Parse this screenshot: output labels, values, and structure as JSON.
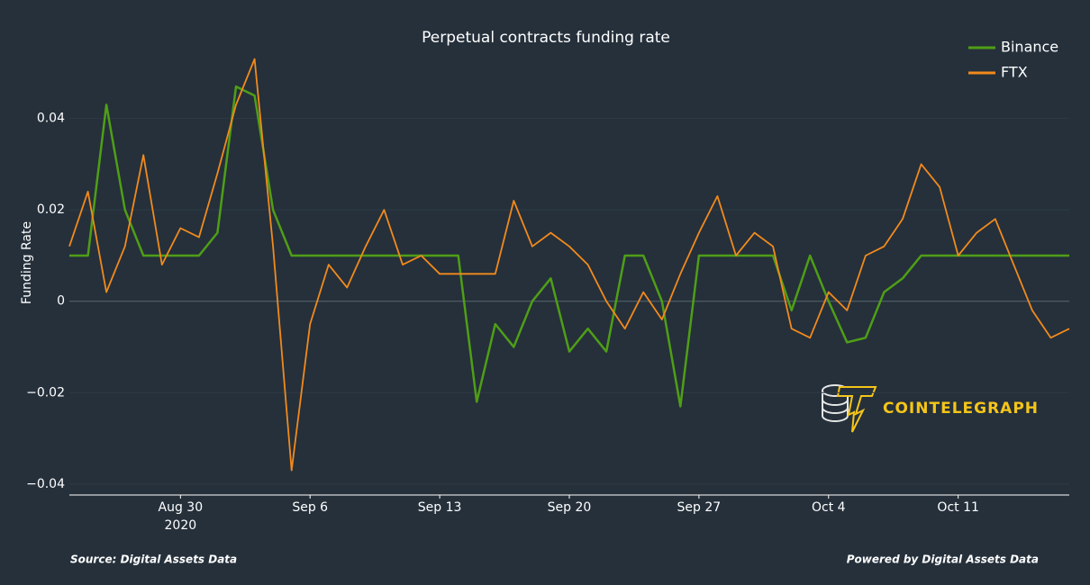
{
  "chart_data": {
    "type": "line",
    "title": "Perpetual contracts funding rate",
    "y_label": "Funding Rate",
    "source": "Source: Digital Assets Data",
    "credit": "Powered by Digital Assets Data",
    "watermark": "COINTELEGRAPH",
    "legend": "top-right",
    "x": [
      "2020-08-24",
      "2020-08-25",
      "2020-08-26",
      "2020-08-27",
      "2020-08-28",
      "2020-08-29",
      "2020-08-30",
      "2020-08-31",
      "2020-09-01",
      "2020-09-02",
      "2020-09-03",
      "2020-09-04",
      "2020-09-05",
      "2020-09-06",
      "2020-09-07",
      "2020-09-08",
      "2020-09-09",
      "2020-09-10",
      "2020-09-11",
      "2020-09-12",
      "2020-09-13",
      "2020-09-14",
      "2020-09-15",
      "2020-09-16",
      "2020-09-17",
      "2020-09-18",
      "2020-09-19",
      "2020-09-20",
      "2020-09-21",
      "2020-09-22",
      "2020-09-23",
      "2020-09-24",
      "2020-09-25",
      "2020-09-26",
      "2020-09-27",
      "2020-09-28",
      "2020-09-29",
      "2020-09-30",
      "2020-10-01",
      "2020-10-02",
      "2020-10-03",
      "2020-10-04",
      "2020-10-05",
      "2020-10-06",
      "2020-10-07",
      "2020-10-08",
      "2020-10-09",
      "2020-10-10",
      "2020-10-11",
      "2020-10-12",
      "2020-10-13",
      "2020-10-14",
      "2020-10-15",
      "2020-10-16",
      "2020-10-17"
    ],
    "series": [
      {
        "name": "Binance",
        "color": "#4f9e16",
        "values": [
          0.01,
          0.01,
          0.043,
          0.02,
          0.01,
          0.01,
          0.01,
          0.01,
          0.015,
          0.047,
          0.045,
          0.02,
          0.01,
          0.01,
          0.01,
          0.01,
          0.01,
          0.01,
          0.01,
          0.01,
          0.01,
          0.01,
          -0.022,
          -0.005,
          -0.01,
          0,
          0.005,
          -0.011,
          -0.006,
          -0.011,
          0.01,
          0.01,
          0.0,
          -0.023,
          0.01,
          0.01,
          0.01,
          0.01,
          0.01,
          -0.002,
          0.01,
          0,
          -0.009,
          -0.008,
          0.002,
          0.005,
          0.01,
          0.01,
          0.01,
          0.01,
          0.01,
          0.01,
          0.01,
          0.01,
          0.01
        ]
      },
      {
        "name": "FTX",
        "color": "#f28a1c",
        "values": [
          0.012,
          0.024,
          0.002,
          0.012,
          0.032,
          0.008,
          0.016,
          0.014,
          0.028,
          0.043,
          0.053,
          0.012,
          -0.037,
          -0.005,
          0.008,
          0.003,
          0.012,
          0.02,
          0.008,
          0.01,
          0.006,
          0.006,
          0.006,
          0.006,
          0.022,
          0.012,
          0.015,
          0.012,
          0.008,
          0,
          -0.006,
          0.002,
          -0.004,
          0.006,
          0.015,
          0.023,
          0.01,
          0.015,
          0.012,
          -0.006,
          -0.008,
          0.002,
          -0.002,
          0.01,
          0.012,
          0.018,
          0.03,
          0.025,
          0.01,
          0.015,
          0.018,
          0.008,
          -0.002,
          -0.008,
          -0.006
        ]
      }
    ],
    "xlim": [
      "2020-08-24",
      "2020-10-17"
    ],
    "xticks": [
      {
        "value": "2020-08-30",
        "label": "Aug 30\n2020"
      },
      {
        "value": "2020-09-06",
        "label": "Sep 6"
      },
      {
        "value": "2020-09-13",
        "label": "Sep 13"
      },
      {
        "value": "2020-09-20",
        "label": "Sep 20"
      },
      {
        "value": "2020-09-27",
        "label": "Sep 27"
      },
      {
        "value": "2020-10-04",
        "label": "Oct 4"
      },
      {
        "value": "2020-10-11",
        "label": "Oct 11"
      }
    ],
    "ylim": [
      -0.0424,
      0.0547
    ],
    "yticks": [
      {
        "value": -0.04,
        "label": "−0.04"
      },
      {
        "value": -0.02,
        "label": "−0.02"
      },
      0,
      0.02,
      0.04
    ],
    "grid": true
  }
}
